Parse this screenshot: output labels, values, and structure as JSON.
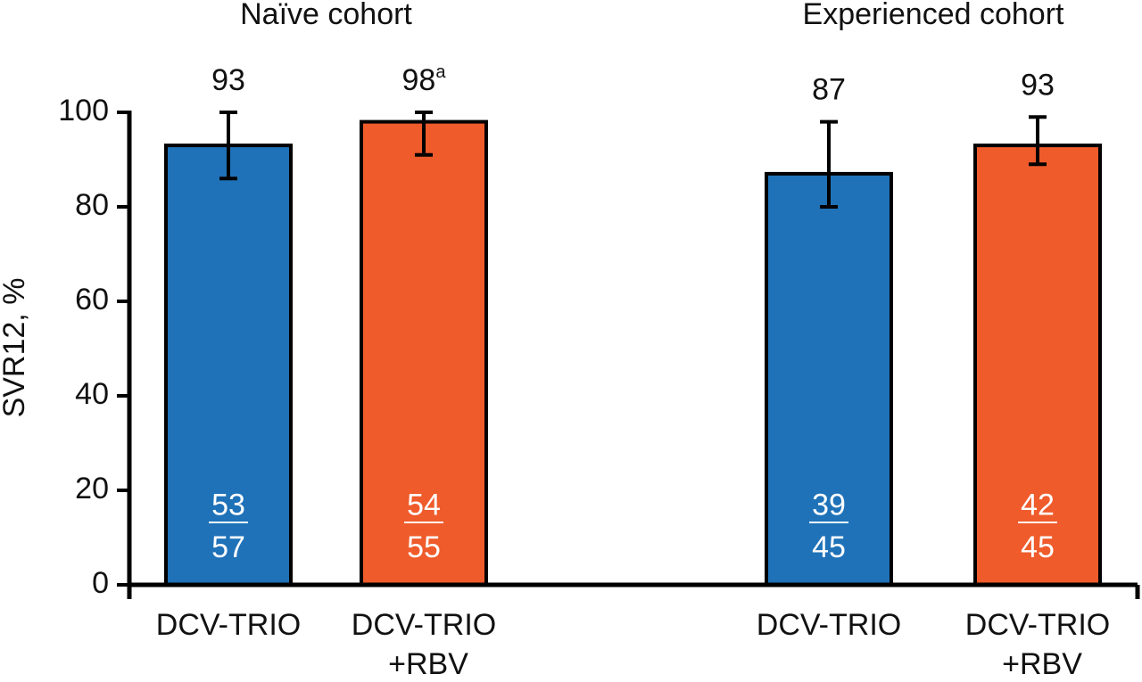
{
  "chart_data": {
    "type": "bar",
    "y_label": "SVR12, %",
    "groups": [
      {
        "label": "Naïve cohort",
        "members": [
          0,
          1
        ]
      },
      {
        "label": "Experienced cohort",
        "members": [
          2,
          3
        ]
      }
    ],
    "categories": [
      [
        "DCV-TRIO"
      ],
      [
        "DCV-TRIO",
        "+RBV"
      ],
      [
        "DCV-TRIO"
      ],
      [
        "DCV-TRIO",
        "+RBV"
      ]
    ],
    "values": [
      93,
      98,
      87,
      93
    ],
    "value_labels": [
      "93",
      "98",
      "87",
      "93"
    ],
    "value_label_notes": [
      null,
      "a",
      null,
      null
    ],
    "error_low": [
      86,
      91,
      80,
      89
    ],
    "error_high": [
      100,
      100,
      98,
      99
    ],
    "responders": [
      53,
      54,
      39,
      42
    ],
    "totals": [
      57,
      55,
      45,
      45
    ],
    "colors": [
      "#1f72b8",
      "#ef5b2b",
      "#1f72b8",
      "#ef5b2b"
    ],
    "ylim": [
      0,
      100
    ],
    "yticks": [
      0,
      20,
      40,
      60,
      80,
      100
    ]
  }
}
